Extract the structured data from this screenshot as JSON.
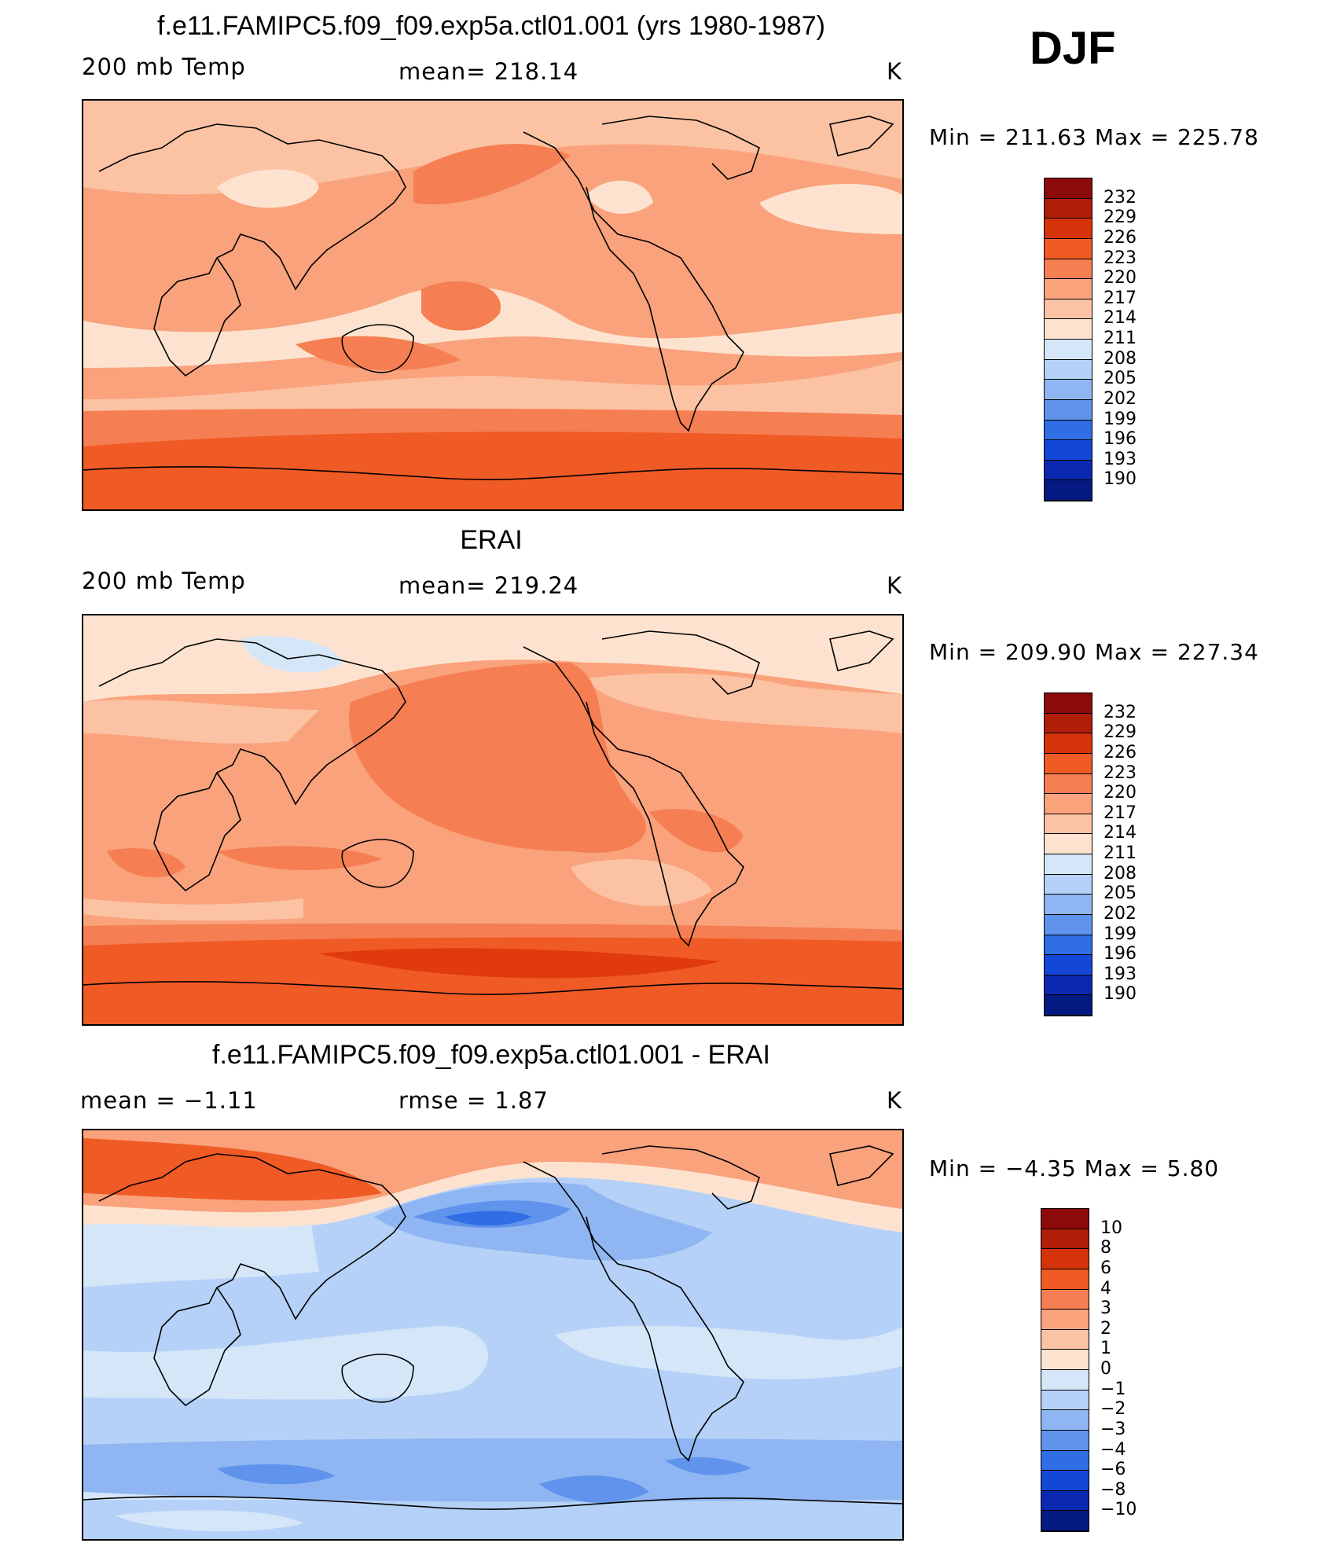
{
  "season": "DJF",
  "panels": [
    {
      "title": "f.e11.FAMIPC5.f09_f09.exp5a.ctl01.001 (yrs 1980-1987)",
      "left_label": "200 mb Temp",
      "center_label": "mean= 218.14",
      "units": "K",
      "minmax": "Min = 211.63 Max = 225.78",
      "colorbar_labels": [
        "232",
        "229",
        "226",
        "223",
        "220",
        "217",
        "214",
        "211",
        "208",
        "205",
        "202",
        "199",
        "196",
        "193",
        "190"
      ],
      "band_colors": [
        "#fde3cf",
        "#fcc2a4",
        "#f9a27c",
        "#f57e52",
        "#f05a25",
        "#e03a0e"
      ]
    },
    {
      "title": "ERAI",
      "left_label": "200 mb Temp",
      "center_label": "mean= 219.24",
      "units": "K",
      "minmax": "Min = 209.90 Max = 227.34",
      "colorbar_labels": [
        "232",
        "229",
        "226",
        "223",
        "220",
        "217",
        "214",
        "211",
        "208",
        "205",
        "202",
        "199",
        "196",
        "193",
        "190"
      ],
      "band_colors": [
        "#d5e6f9",
        "#fde3cf",
        "#fcc2a4",
        "#f9a27c",
        "#f57e52",
        "#f05a25",
        "#e03a0e"
      ]
    },
    {
      "title": "f.e11.FAMIPC5.f09_f09.exp5a.ctl01.001 - ERAI",
      "left_label": "mean = −1.11",
      "center_label": "rmse = 1.87",
      "units": "K",
      "minmax": "Min = −4.35 Max = 5.80",
      "colorbar_labels": [
        "10",
        "8",
        "6",
        "4",
        "3",
        "2",
        "1",
        "0",
        "−1",
        "−2",
        "−3",
        "−4",
        "−6",
        "−8",
        "−10"
      ],
      "band_colors": [
        "#f05a25",
        "#f57e52",
        "#fde3cf",
        "#d5e6f9",
        "#b5d1f7",
        "#8fb6f2",
        "#5f93ec",
        "#2f6ee4"
      ]
    }
  ],
  "colorbar_colors": [
    "#8b0a0a",
    "#b01e0a",
    "#d6330b",
    "#f05a25",
    "#f57e52",
    "#f9a27c",
    "#fcc2a4",
    "#fde3cf",
    "#d5e6f9",
    "#b5d1f7",
    "#8fb6f2",
    "#5f93ec",
    "#2f6ee4",
    "#1347d6",
    "#0a28b0",
    "#041a82"
  ]
}
